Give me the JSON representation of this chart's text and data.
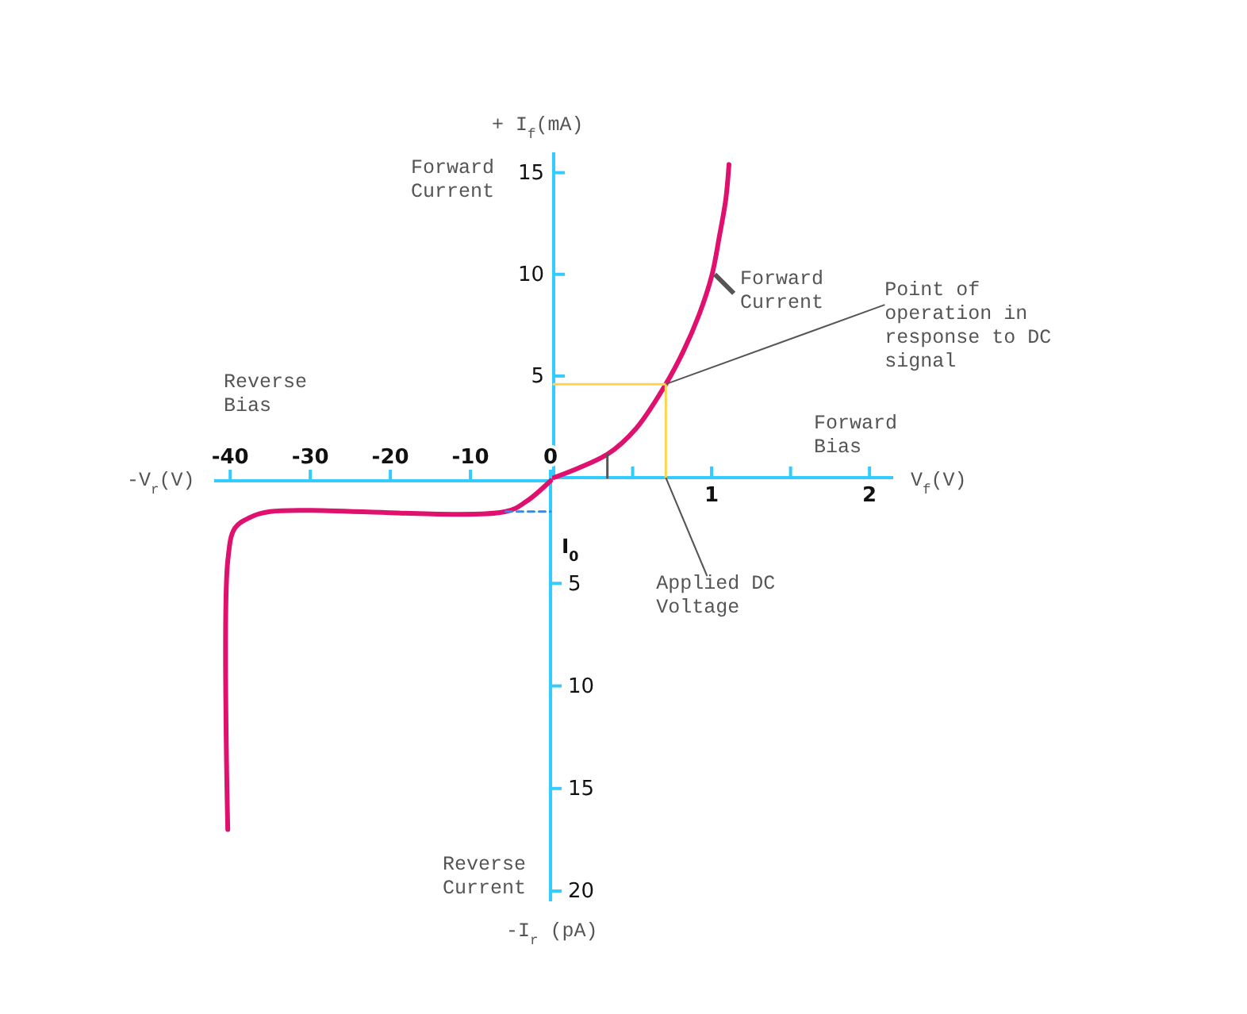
{
  "chart_data": [
    {
      "type": "line",
      "xlim": [
        -42,
        0
      ],
      "ylim": [
        -20.5,
        0
      ],
      "xticks": [
        -40,
        -30,
        -20,
        -10,
        0
      ],
      "yticks": [
        {
          "value": -5,
          "label": "5"
        },
        {
          "value": -10,
          "label": "10"
        },
        {
          "value": -15,
          "label": "15"
        },
        {
          "value": -20,
          "label": "20"
        }
      ],
      "series": [
        {
          "color": "#e0106e",
          "x": [
            -40.3,
            -40.3,
            -39.4,
            -37.6,
            -35,
            -5.6,
            -3,
            0
          ],
          "values": [
            -17,
            -3.9,
            -2.3,
            -1.8,
            -1.5,
            -1.5,
            -1.0,
            0
          ]
        },
        {
          "color": "#2a8df4",
          "x": [
            -5.6,
            0
          ],
          "values": [
            -1.5,
            -1.5
          ],
          "line_style": "dashed"
        }
      ],
      "annotations": [
        "Reverse Bias",
        "Reverse Current",
        "-V$_{r}$(V)",
        "-I$_{r}$ (pA)",
        {
          "text": "I$_{0}$",
          "x": 0,
          "y": -1.5
        }
      ]
    },
    {
      "type": "line",
      "xlim": [
        0,
        2.15
      ],
      "ylim": [
        0,
        16
      ],
      "xticks": [
        {
          "value": 0.5,
          "label": null
        },
        1,
        {
          "value": 1.5,
          "label": null
        },
        2
      ],
      "yticks": [
        5,
        10,
        15
      ],
      "series": [
        {
          "color": "#e0106e",
          "x": [
            0,
            0.34,
            0.52,
            0.71,
            0.82,
            0.92,
            1.0,
            1.05,
            1.09,
            1.11
          ],
          "values": [
            0,
            1.15,
            2.4,
            4.6,
            6.2,
            8.0,
            9.9,
            11.9,
            13.7,
            15.4
          ]
        },
        {
          "color": "#ffd54f",
          "x": [
            0,
            0.71,
            0.71
          ],
          "values": [
            4.6,
            4.6,
            0
          ]
        },
        {
          "color": "#555555",
          "x": [
            0.34,
            0.34
          ],
          "values": [
            0,
            1.15
          ]
        }
      ],
      "annotations": [
        "Forward Current",
        "Forward Bias",
        "+ I$_{f}$(mA)",
        "V$_{f}$(V)",
        {
          "text": "Forward Current",
          "x": 1.02,
          "y": 10
        },
        {
          "text": "Point of operation in response to DC signal",
          "x": 0.71,
          "y": 4.6
        },
        {
          "text": "Applied DC Voltage",
          "x": 0.71,
          "y": 0
        }
      ]
    }
  ]
}
